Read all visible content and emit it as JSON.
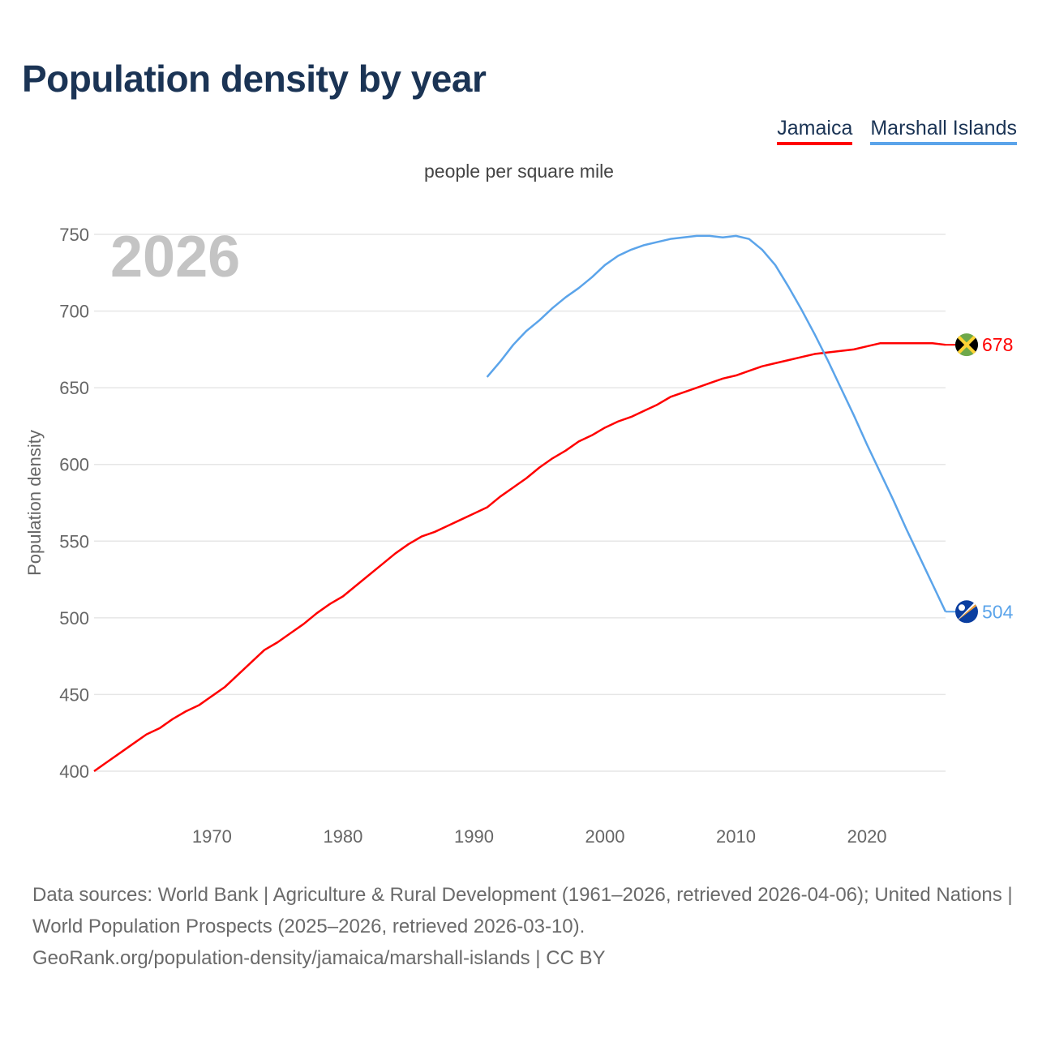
{
  "title": "Population density by year",
  "legend": {
    "jamaica": "Jamaica",
    "marshall": "Marshall Islands"
  },
  "subtitle": "people per square mile",
  "footer": {
    "line1": "Data sources: World Bank | Agriculture & Rural Development (1961–2026, retrieved 2026-04-06); United Nations | World Population Prospects (2025–2026, retrieved 2026-03-10).",
    "line2": "GeoRank.org/population-density/jamaica/marshall-islands | CC BY"
  },
  "chart_data": {
    "type": "line",
    "title": "Population density by year",
    "ylabel": "Population density",
    "xlabel": "",
    "year_label": "2026",
    "ylim": [
      400,
      750
    ],
    "xlim": [
      1961,
      2026
    ],
    "yticks": [
      400,
      450,
      500,
      550,
      600,
      650,
      700,
      750
    ],
    "xticks": [
      1970,
      1980,
      1990,
      2000,
      2010,
      2020
    ],
    "grid": true,
    "legend_position": "top-right",
    "series": [
      {
        "name": "Jamaica",
        "color": "#ff0000",
        "end_label": "678",
        "flag": "jamaica-flag",
        "x": [
          1961,
          1962,
          1963,
          1964,
          1965,
          1966,
          1967,
          1968,
          1969,
          1970,
          1971,
          1972,
          1973,
          1974,
          1975,
          1976,
          1977,
          1978,
          1979,
          1980,
          1981,
          1982,
          1983,
          1984,
          1985,
          1986,
          1987,
          1988,
          1989,
          1990,
          1991,
          1992,
          1993,
          1994,
          1995,
          1996,
          1997,
          1998,
          1999,
          2000,
          2001,
          2002,
          2003,
          2004,
          2005,
          2006,
          2007,
          2008,
          2009,
          2010,
          2011,
          2012,
          2013,
          2014,
          2015,
          2016,
          2017,
          2018,
          2019,
          2020,
          2021,
          2022,
          2023,
          2024,
          2025,
          2026
        ],
        "values": [
          400,
          406,
          412,
          418,
          424,
          428,
          434,
          439,
          443,
          449,
          455,
          463,
          471,
          479,
          484,
          490,
          496,
          503,
          509,
          514,
          521,
          528,
          535,
          542,
          548,
          553,
          556,
          560,
          564,
          568,
          572,
          579,
          585,
          591,
          598,
          604,
          609,
          615,
          619,
          624,
          628,
          631,
          635,
          639,
          644,
          647,
          650,
          653,
          656,
          658,
          661,
          664,
          666,
          668,
          670,
          672,
          673,
          674,
          675,
          677,
          679,
          679,
          679,
          679,
          679,
          678
        ]
      },
      {
        "name": "Marshall Islands",
        "color": "#5ba4ea",
        "end_label": "504",
        "flag": "marshall-islands-flag",
        "x": [
          1991,
          1992,
          1993,
          1994,
          1995,
          1996,
          1997,
          1998,
          1999,
          2000,
          2001,
          2002,
          2003,
          2004,
          2005,
          2006,
          2007,
          2008,
          2009,
          2010,
          2011,
          2012,
          2013,
          2014,
          2015,
          2016,
          2017,
          2018,
          2019,
          2020,
          2021,
          2022,
          2023,
          2024,
          2025,
          2026
        ],
        "values": [
          657,
          667,
          678,
          687,
          694,
          702,
          709,
          715,
          722,
          730,
          736,
          740,
          743,
          745,
          747,
          748,
          749,
          749,
          748,
          749,
          747,
          740,
          730,
          716,
          701,
          685,
          668,
          650,
          632,
          613,
          595,
          577,
          558,
          540,
          522,
          504
        ]
      }
    ]
  }
}
